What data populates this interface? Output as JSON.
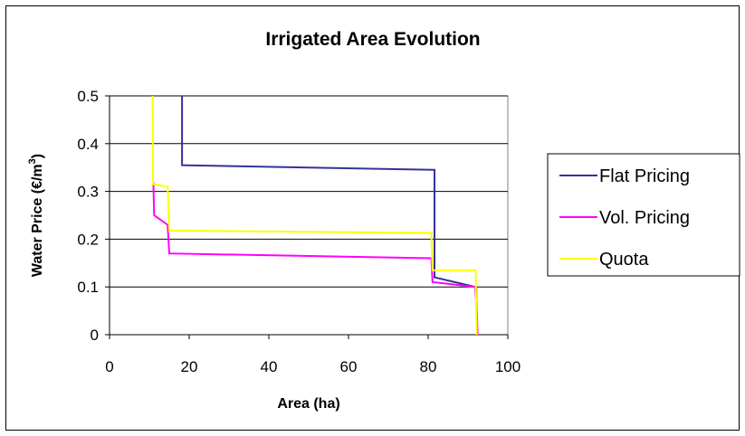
{
  "chart_data": {
    "type": "line",
    "title": "Irrigated Area Evolution",
    "xlabel": "Area (ha)",
    "ylabel_main": "Water Price (€/m",
    "ylabel_sup": "3",
    "ylabel_end": ")",
    "xlim": [
      0,
      100
    ],
    "ylim": [
      0,
      0.5
    ],
    "xticks": [
      0,
      20,
      40,
      60,
      80,
      100
    ],
    "yticks": [
      0,
      0.1,
      0.2,
      0.3,
      0.4,
      0.5
    ],
    "xtick_labels": [
      "0",
      "20",
      "40",
      "60",
      "80",
      "100"
    ],
    "ytick_labels": [
      "0",
      "0.1",
      "0.2",
      "0.3",
      "0.4",
      "0.5"
    ],
    "grid": "horizontal",
    "legend_position": "right",
    "series": [
      {
        "name": "Flat Pricing",
        "color": "#333399",
        "points": [
          [
            18.2,
            0.5
          ],
          [
            18.2,
            0.355
          ],
          [
            81.4,
            0.345
          ],
          [
            81.6,
            0.345
          ],
          [
            81.6,
            0.12
          ],
          [
            91.8,
            0.1
          ],
          [
            92.1,
            0.1
          ],
          [
            92.1,
            0.07
          ],
          [
            92.3,
            0.0
          ]
        ]
      },
      {
        "name": "Vol. Pricing",
        "color": "#ff00ff",
        "points": [
          [
            11.0,
            0.32
          ],
          [
            11.2,
            0.25
          ],
          [
            14.6,
            0.23
          ],
          [
            15.0,
            0.17
          ],
          [
            80.8,
            0.16
          ],
          [
            81.1,
            0.11
          ],
          [
            91.8,
            0.1
          ],
          [
            92.2,
            0.05
          ],
          [
            92.4,
            0.0
          ]
        ]
      },
      {
        "name": "Quota",
        "color": "#ffff00",
        "points": [
          [
            10.8,
            0.5
          ],
          [
            10.9,
            0.315
          ],
          [
            14.6,
            0.31
          ],
          [
            15.0,
            0.218
          ],
          [
            80.8,
            0.213
          ],
          [
            81.1,
            0.135
          ],
          [
            91.9,
            0.135
          ],
          [
            92.2,
            0.0
          ]
        ]
      }
    ]
  }
}
